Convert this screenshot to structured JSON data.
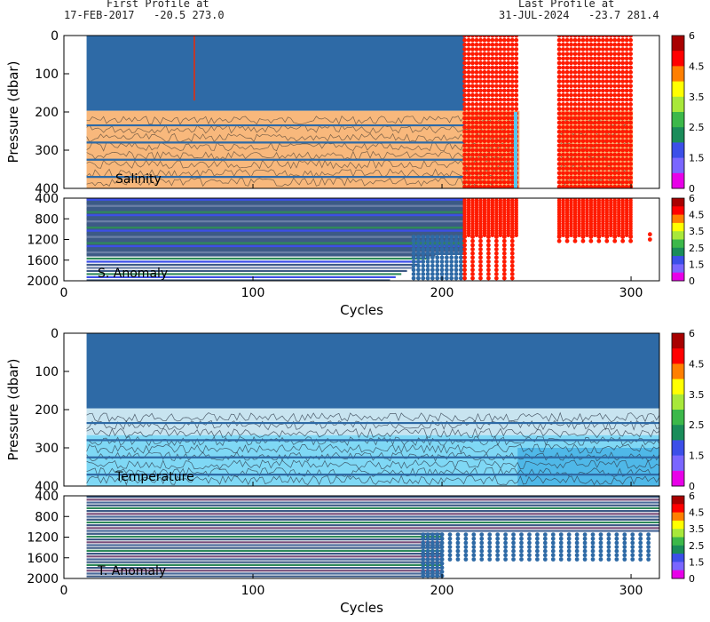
{
  "header": {
    "first_label": "First Profile at",
    "first_info": "17-FEB-2017   -20.5 273.0",
    "last_label": "Last Profile at",
    "last_info": "31-JUL-2024   -23.7 281.4"
  },
  "chart_data": [
    {
      "type": "heatmap",
      "title": "Salinity",
      "xlabel": "",
      "ylabel": "Pressure (dbar)",
      "xlim": [
        0,
        315
      ],
      "ylim": [
        0,
        400
      ],
      "yticks": [
        "0",
        "100",
        "200",
        "300",
        "400"
      ],
      "xticks": [
        "0",
        "100",
        "200",
        "300"
      ],
      "profile_cycles": [
        12,
        212,
        241,
        262,
        301
      ],
      "data_gap_cycles": [
        241,
        262
      ],
      "colorbar": {
        "ticks": [
          "6",
          "4.5",
          "3.5",
          "2.5",
          "1.5",
          "0"
        ]
      }
    },
    {
      "type": "heatmap",
      "title": "S. Anomaly",
      "xlabel": "Cycles",
      "ylabel": "",
      "xlim": [
        0,
        315
      ],
      "ylim": [
        400,
        2000
      ],
      "yticks": [
        "400",
        "800",
        "1200",
        "1600",
        "2000"
      ],
      "xticks": [
        "0",
        "100",
        "200",
        "300"
      ],
      "colorbar": {
        "ticks": [
          "6",
          "4.5",
          "3.5",
          "2.5",
          "1.5",
          "0"
        ]
      }
    },
    {
      "type": "heatmap",
      "title": "Temperature",
      "xlabel": "",
      "ylabel": "Pressure (dbar)",
      "xlim": [
        0,
        315
      ],
      "ylim": [
        0,
        400
      ],
      "yticks": [
        "0",
        "100",
        "200",
        "300",
        "400"
      ],
      "xticks": [
        "0",
        "100",
        "200",
        "300"
      ],
      "colorbar": {
        "ticks": [
          "6",
          "4.5",
          "3.5",
          "2.5",
          "1.5",
          "0"
        ]
      }
    },
    {
      "type": "heatmap",
      "title": "T. Anomaly",
      "xlabel": "Cycles",
      "ylabel": "",
      "xlim": [
        0,
        315
      ],
      "ylim": [
        400,
        2000
      ],
      "yticks": [
        "400",
        "800",
        "1200",
        "1600",
        "2000"
      ],
      "xticks": [
        "0",
        "100",
        "200",
        "300"
      ],
      "colorbar": {
        "ticks": [
          "6",
          "4.5",
          "3.5",
          "2.5",
          "1.5",
          "0"
        ]
      }
    }
  ],
  "colors": {
    "profile_blue": "#2e6aa6",
    "sal_fill": "#f8b87c",
    "recent_red": "#ff1a00",
    "grid_line": "#3f4f6a",
    "temp_light": "#c8e4f0",
    "temp_cyan": "#7fd8f5",
    "temp_mid": "#4fb8e8",
    "colorbar": [
      "#a80000",
      "#ff0000",
      "#ff7f00",
      "#ffff00",
      "#a8e83a",
      "#3cb84a",
      "#1a8c5a",
      "#3c4fe8",
      "#7a66ff",
      "#e800e8"
    ]
  }
}
